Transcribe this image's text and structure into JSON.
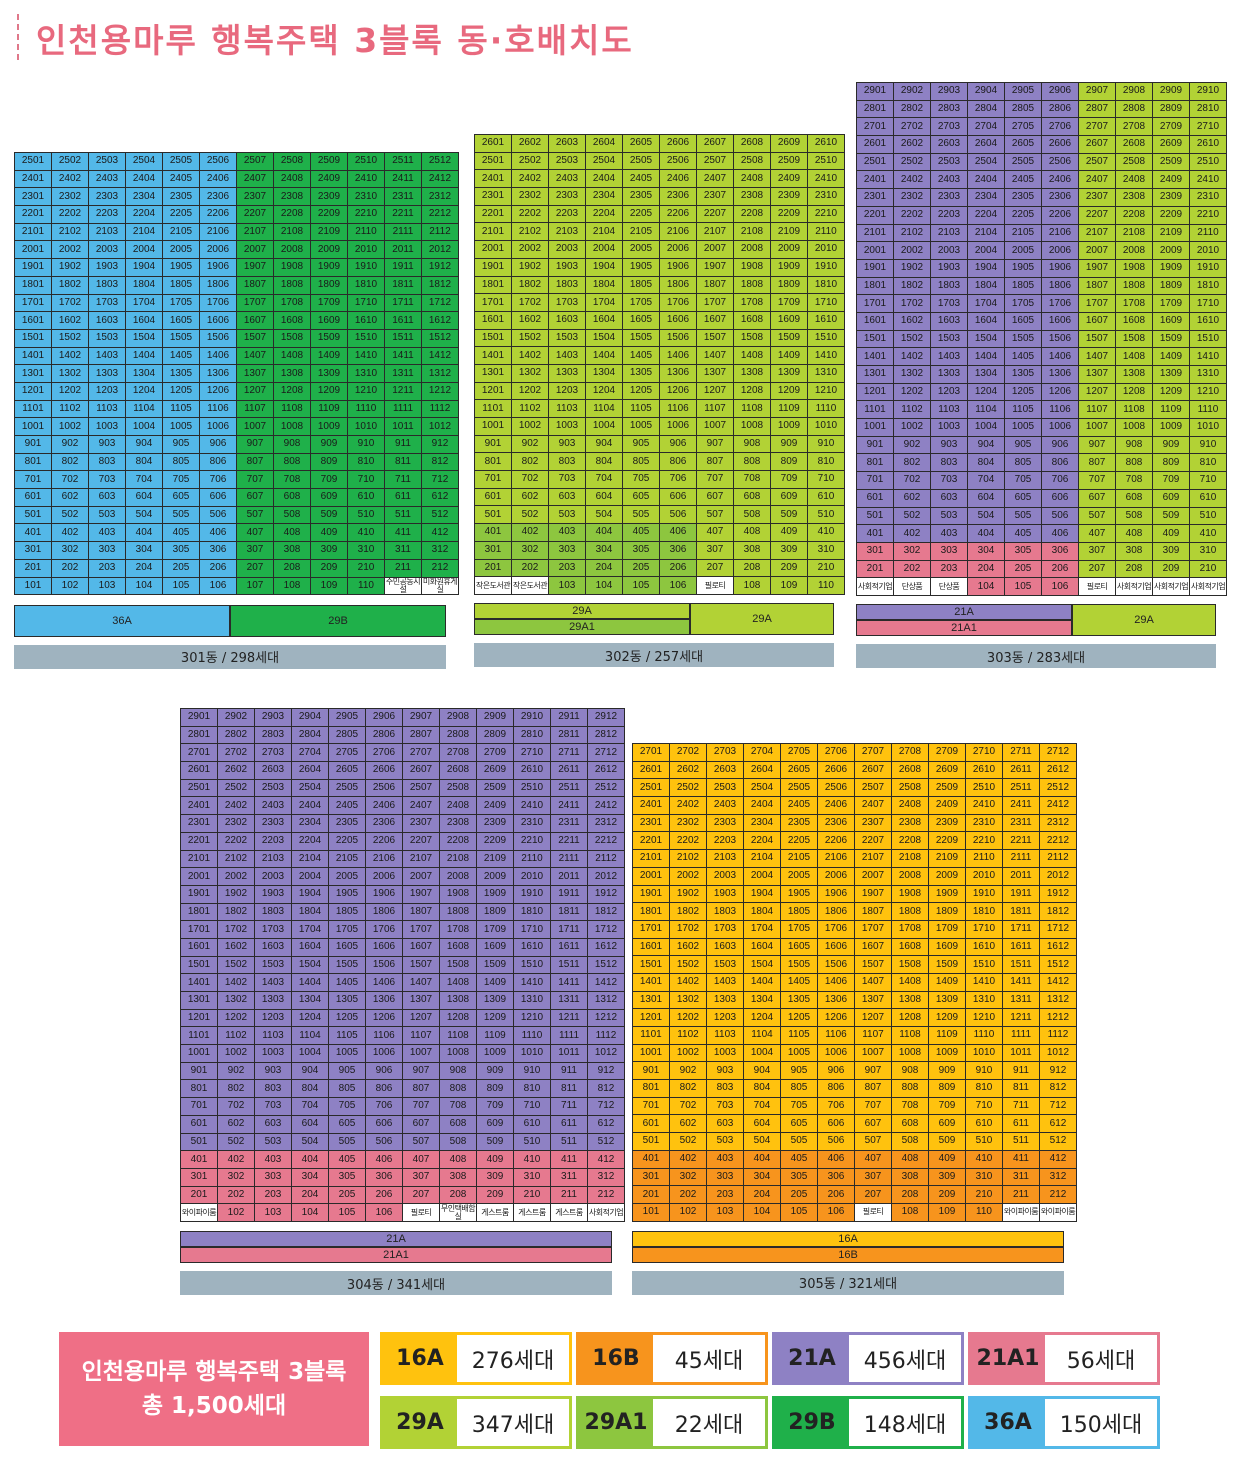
{
  "title": "인천용마루 행복주택 3블록 동·호배치도",
  "type_colors": {
    "16A": "#ffc20e",
    "16B": "#f7941d",
    "21A": "#8e81c4",
    "21A1": "#e6798f",
    "29A": "#b2d235",
    "29A1": "#8dc63f",
    "29B": "#1fb04a",
    "36A": "#53b8e8"
  },
  "buildings": [
    {
      "id": "301",
      "label": "301동 / 298세대",
      "top_floors": [
        25,
        25,
        25,
        25,
        25,
        25,
        25,
        25,
        25,
        25,
        25,
        25
      ],
      "units": 12,
      "ground_labels": {
        "11": "주민공동시설",
        "12": "미화원휴게실"
      },
      "type_by_floor_col": [
        {
          "floors": [
            1,
            25
          ],
          "cols": [
            1,
            6
          ],
          "type": "36A"
        },
        {
          "floors": [
            1,
            25
          ],
          "cols": [
            7,
            12
          ],
          "type": "29B"
        }
      ],
      "type_bars": [
        [
          {
            "label": "36A",
            "type": "36A",
            "flex": 6
          },
          {
            "label": "29B",
            "type": "29B",
            "flex": 6
          }
        ]
      ]
    },
    {
      "id": "302",
      "label": "302동 / 257세대",
      "top_floors": [
        26,
        26,
        26,
        26,
        26,
        26,
        26,
        26,
        26,
        26
      ],
      "units": 10,
      "ground_labels": {
        "1": "작은도서관",
        "2": "작은도서관",
        "7": "필로티"
      },
      "type_by_floor_col": [
        {
          "floors": [
            1,
            26
          ],
          "cols": [
            1,
            10
          ],
          "type": "29A"
        },
        {
          "floors": [
            1,
            4
          ],
          "cols": [
            1,
            6
          ],
          "type": "29A1"
        }
      ],
      "type_bars": [
        [
          {
            "label": "29A",
            "type": "29A",
            "flex": 6
          },
          {
            "label": "29A",
            "type": "29A",
            "flex": 4
          }
        ],
        [
          {
            "label": "29A1",
            "type": "29A1",
            "flex": 6
          }
        ]
      ]
    },
    {
      "id": "303",
      "label": "303동 / 283세대",
      "top_floors": [
        29,
        29,
        29,
        29,
        29,
        29,
        29,
        29,
        29,
        29
      ],
      "units": 10,
      "ground_labels": {
        "1": "사회적기업",
        "2": "단상품",
        "3": "단상품",
        "7": "필로티",
        "8": "사회적기업",
        "9": "사회적기업",
        "10": "사회적기업"
      },
      "type_by_floor_col": [
        {
          "floors": [
            1,
            29
          ],
          "cols": [
            1,
            6
          ],
          "type": "21A"
        },
        {
          "floors": [
            1,
            3
          ],
          "cols": [
            1,
            6
          ],
          "type": "21A1"
        },
        {
          "floors": [
            1,
            29
          ],
          "cols": [
            7,
            10
          ],
          "type": "29A"
        }
      ],
      "type_bars": [
        [
          {
            "label": "21A",
            "type": "21A",
            "flex": 6
          },
          {
            "label": "29A",
            "type": "29A",
            "flex": 4
          }
        ],
        [
          {
            "label": "21A1",
            "type": "21A1",
            "flex": 6
          }
        ]
      ]
    },
    {
      "id": "304",
      "label": "304동 / 341세대",
      "top_floors": [
        29,
        29,
        29,
        29,
        29,
        29,
        29,
        29,
        29,
        29,
        29,
        29
      ],
      "units": 12,
      "ground_labels": {
        "1": "와이파이룸",
        "7": "필로티",
        "8": "무인택배함실",
        "9": "게스트룸",
        "10": "게스트룸",
        "11": "게스트룸",
        "12": "사회적기업"
      },
      "type_by_floor_col": [
        {
          "floors": [
            1,
            29
          ],
          "cols": [
            1,
            12
          ],
          "type": "21A"
        },
        {
          "floors": [
            1,
            4
          ],
          "cols": [
            1,
            12
          ],
          "type": "21A1"
        }
      ],
      "type_bars": [
        [
          {
            "label": "21A",
            "type": "21A",
            "flex": 12
          }
        ],
        [
          {
            "label": "21A1",
            "type": "21A1",
            "flex": 12
          }
        ]
      ]
    },
    {
      "id": "305",
      "label": "305동 / 321세대",
      "top_floors": [
        27,
        27,
        27,
        27,
        27,
        27,
        27,
        27,
        27,
        27,
        27,
        27
      ],
      "units": 12,
      "ground_labels": {
        "7": "필로티",
        "11": "와이파이룸",
        "12": "와이파이룸"
      },
      "type_by_floor_col": [
        {
          "floors": [
            1,
            27
          ],
          "cols": [
            1,
            12
          ],
          "type": "16A"
        },
        {
          "floors": [
            1,
            4
          ],
          "cols": [
            1,
            12
          ],
          "type": "16B"
        }
      ],
      "type_bars": [
        [
          {
            "label": "16A",
            "type": "16A",
            "flex": 12
          }
        ],
        [
          {
            "label": "16B",
            "type": "16B",
            "flex": 12
          }
        ]
      ]
    }
  ],
  "summary": {
    "line1": "인천용마루 행복주택 3블록",
    "line2": "총 1,500세대"
  },
  "legend": [
    {
      "type": "16A",
      "count": "276세대"
    },
    {
      "type": "16B",
      "count": "45세대"
    },
    {
      "type": "21A",
      "count": "456세대"
    },
    {
      "type": "21A1",
      "count": "56세대"
    },
    {
      "type": "29A",
      "count": "347세대"
    },
    {
      "type": "29A1",
      "count": "22세대"
    },
    {
      "type": "29B",
      "count": "148세대"
    },
    {
      "type": "36A",
      "count": "150세대"
    }
  ]
}
